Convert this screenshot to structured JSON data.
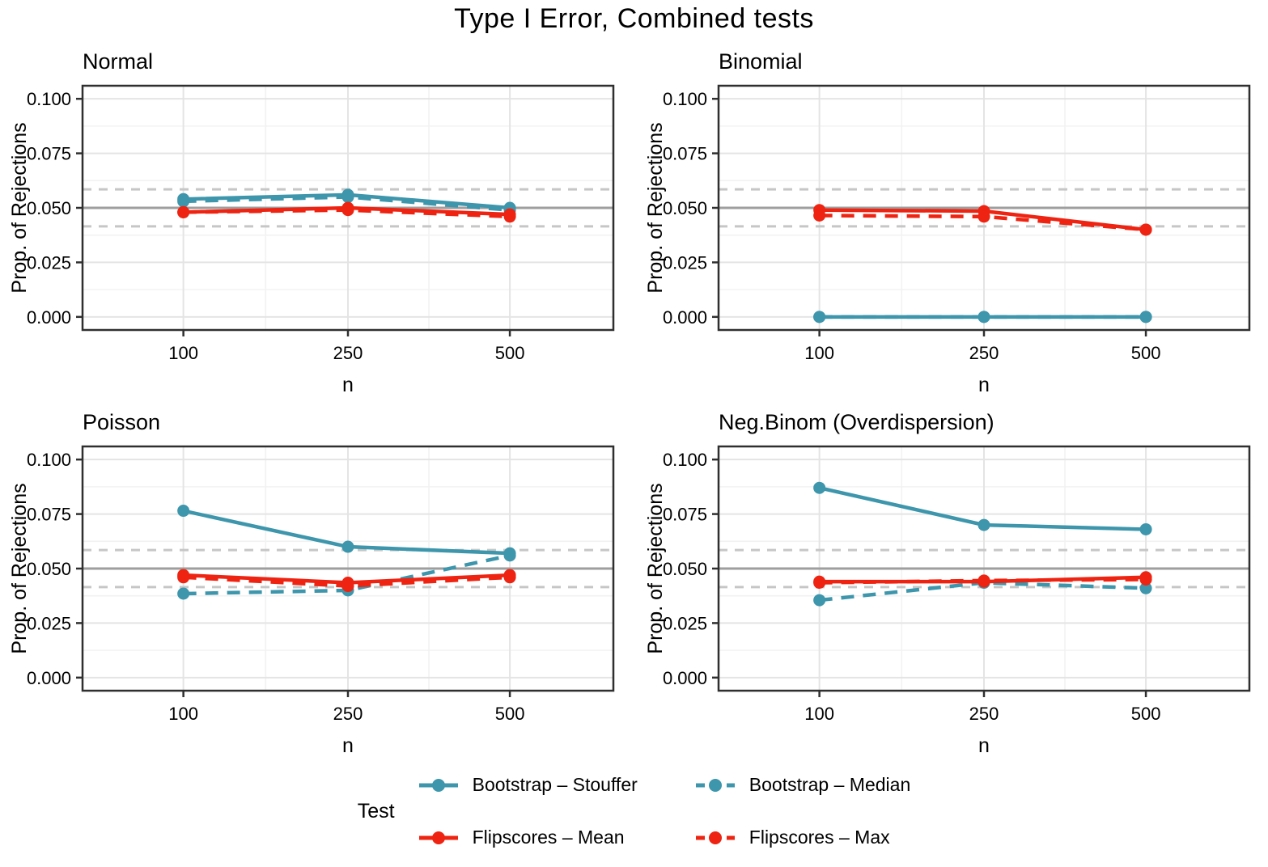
{
  "title": "Type I Error, Combined tests",
  "colors": {
    "teal": "#3D96AC",
    "red": "#EE2311",
    "grid_major": "#E4E4E4",
    "grid_minor": "#F2F2F2",
    "ref_solid": "#9E9E9E",
    "ref_dashed": "#C6C6C6",
    "panel_border": "#2F2F2F",
    "text": "#000000",
    "panel_bg": "#FFFFFF"
  },
  "axes": {
    "x_label": "n",
    "y_label": "Prop. of Rejections",
    "x_tick_labels": [
      "100",
      "250",
      "500"
    ],
    "y_tick_labels": [
      "0.000",
      "0.025",
      "0.050",
      "0.075",
      "0.100"
    ],
    "y_tick_values": [
      0.0,
      0.025,
      0.05,
      0.075,
      0.1
    ],
    "y_minor_values": [
      0.0125,
      0.0375,
      0.0625,
      0.0875
    ]
  },
  "ref_lines": {
    "solid": 0.05,
    "dashed_upper": 0.0585,
    "dashed_lower": 0.0415
  },
  "legend": {
    "title": "Test",
    "entries": [
      {
        "label": "Bootstrap – Stouffer",
        "color_key": "teal",
        "dash": false
      },
      {
        "label": "Bootstrap – Median",
        "color_key": "teal",
        "dash": true
      },
      {
        "label": "Flipscores – Mean",
        "color_key": "red",
        "dash": false
      },
      {
        "label": "Flipscores – Max",
        "color_key": "red",
        "dash": true
      }
    ]
  },
  "chart_data": [
    {
      "type": "line",
      "title": "Normal",
      "x": [
        100,
        250,
        500
      ],
      "xlabel": "n",
      "ylabel": "Prop. of Rejections",
      "ylim": [
        0,
        0.1
      ],
      "series": [
        {
          "name": "Bootstrap – Stouffer",
          "color_key": "teal",
          "dash": false,
          "values": [
            0.054,
            0.056,
            0.05
          ]
        },
        {
          "name": "Bootstrap – Median",
          "color_key": "teal",
          "dash": true,
          "values": [
            0.053,
            0.055,
            0.049
          ]
        },
        {
          "name": "Flipscores – Mean",
          "color_key": "red",
          "dash": false,
          "values": [
            0.048,
            0.05,
            0.047
          ]
        },
        {
          "name": "Flipscores – Max",
          "color_key": "red",
          "dash": true,
          "values": [
            0.048,
            0.049,
            0.046
          ]
        }
      ]
    },
    {
      "type": "line",
      "title": "Binomial",
      "x": [
        100,
        250,
        500
      ],
      "xlabel": "n",
      "ylabel": "Prop. of Rejections",
      "ylim": [
        0,
        0.1
      ],
      "series": [
        {
          "name": "Bootstrap – Stouffer",
          "color_key": "teal",
          "dash": false,
          "values": [
            0.0,
            0.0,
            0.0
          ]
        },
        {
          "name": "Bootstrap – Median",
          "color_key": "teal",
          "dash": true,
          "values": [
            0.0,
            0.0,
            0.0
          ]
        },
        {
          "name": "Flipscores – Mean",
          "color_key": "red",
          "dash": false,
          "values": [
            0.049,
            0.0485,
            0.04
          ]
        },
        {
          "name": "Flipscores – Max",
          "color_key": "red",
          "dash": true,
          "values": [
            0.0465,
            0.046,
            0.04
          ]
        }
      ]
    },
    {
      "type": "line",
      "title": "Poisson",
      "x": [
        100,
        250,
        500
      ],
      "xlabel": "n",
      "ylabel": "Prop. of Rejections",
      "ylim": [
        0,
        0.1
      ],
      "series": [
        {
          "name": "Bootstrap – Stouffer",
          "color_key": "teal",
          "dash": false,
          "values": [
            0.0765,
            0.06,
            0.057
          ]
        },
        {
          "name": "Bootstrap – Median",
          "color_key": "teal",
          "dash": true,
          "values": [
            0.0385,
            0.04,
            0.056
          ]
        },
        {
          "name": "Flipscores – Mean",
          "color_key": "red",
          "dash": false,
          "values": [
            0.047,
            0.0435,
            0.047
          ]
        },
        {
          "name": "Flipscores – Max",
          "color_key": "red",
          "dash": true,
          "values": [
            0.046,
            0.042,
            0.046
          ]
        }
      ]
    },
    {
      "type": "line",
      "title": "Neg.Binom (Overdispersion)",
      "x": [
        100,
        250,
        500
      ],
      "xlabel": "n",
      "ylabel": "Prop. of Rejections",
      "ylim": [
        0,
        0.1
      ],
      "series": [
        {
          "name": "Bootstrap – Stouffer",
          "color_key": "teal",
          "dash": false,
          "values": [
            0.087,
            0.07,
            0.068
          ]
        },
        {
          "name": "Bootstrap – Median",
          "color_key": "teal",
          "dash": true,
          "values": [
            0.0355,
            0.0435,
            0.041
          ]
        },
        {
          "name": "Flipscores – Mean",
          "color_key": "red",
          "dash": false,
          "values": [
            0.044,
            0.044,
            0.046
          ]
        },
        {
          "name": "Flipscores – Max",
          "color_key": "red",
          "dash": true,
          "values": [
            0.0435,
            0.0445,
            0.045
          ]
        }
      ]
    }
  ]
}
